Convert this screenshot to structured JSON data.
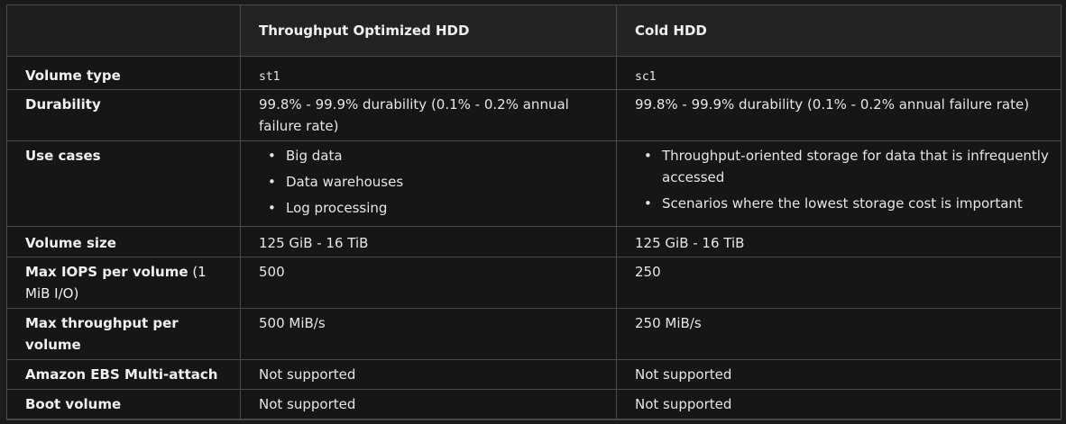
{
  "header": {
    "col1": "",
    "col2": "Throughput Optimized HDD",
    "col3": "Cold HDD"
  },
  "rows": {
    "volume_type": {
      "label": "Volume type",
      "col2": "st1",
      "col3": "sc1"
    },
    "durability": {
      "label": "Durability",
      "col2": "99.8% - 99.9% durability (0.1% - 0.2% annual failure rate)",
      "col3": "99.8% - 99.9% durability (0.1% - 0.2% annual failure rate)"
    },
    "use_cases": {
      "label": "Use cases",
      "col2": [
        "Big data",
        "Data warehouses",
        "Log processing"
      ],
      "col3": [
        "Throughput-oriented storage for data that is infrequently accessed",
        "Scenarios where the lowest storage cost is important"
      ]
    },
    "volume_size": {
      "label": "Volume size",
      "col2": "125 GiB - 16 TiB",
      "col3": "125 GiB - 16 TiB"
    },
    "max_iops": {
      "label_bold": "Max IOPS per volume",
      "label_normal": " (1 MiB I/O)",
      "col2": "500",
      "col3": "250"
    },
    "max_throughput": {
      "label": "Max throughput per volume",
      "col2": "500 MiB/s",
      "col3": "250 MiB/s"
    },
    "multi_attach": {
      "label": "Amazon EBS Multi-attach",
      "col2": "Not supported",
      "col3": "Not supported"
    },
    "boot_volume": {
      "label": "Boot volume",
      "col2": "Not supported",
      "col3": "Not supported"
    }
  },
  "bullet_glyph": "•"
}
